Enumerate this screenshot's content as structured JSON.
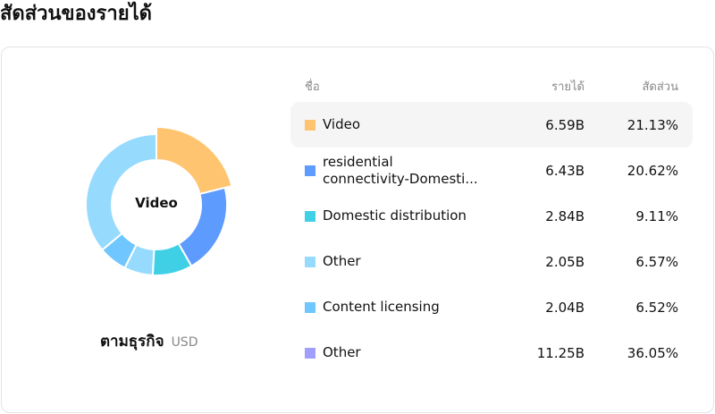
{
  "page": {
    "title": "สัดส่วนของรายได้"
  },
  "chart": {
    "center_label": "Video",
    "footer_label": "ตามธุรกิจ",
    "currency": "USD"
  },
  "table": {
    "headers": {
      "name": "ชื่อ",
      "revenue": "รายได้",
      "share": "สัดส่วน"
    },
    "rows": [
      {
        "name": "Video",
        "revenue": "6.59B",
        "share": "21.13%",
        "color": "#fec46f"
      },
      {
        "name": "residential\nconnectivity-Domesti...",
        "revenue": "6.43B",
        "share": "20.62%",
        "color": "#5e9bfe"
      },
      {
        "name": "Domestic distribution",
        "revenue": "2.84B",
        "share": "9.11%",
        "color": "#40d0e6"
      },
      {
        "name": "Other",
        "revenue": "2.05B",
        "share": "6.57%",
        "color": "#96dafe"
      },
      {
        "name": "Content licensing",
        "revenue": "2.04B",
        "share": "6.52%",
        "color": "#70c6fe"
      },
      {
        "name": "Other",
        "revenue": "11.25B",
        "share": "36.05%",
        "color": "#a09ffe"
      }
    ]
  },
  "chart_data": {
    "type": "pie",
    "title": "สัดส่วนของรายได้",
    "subtitle": "ตามธุรกิจ USD",
    "donut": true,
    "highlighted": "Video",
    "categories": [
      "Video",
      "residential connectivity-Domesti...",
      "Domestic distribution",
      "Other",
      "Content licensing",
      "Other"
    ],
    "values": [
      6.59,
      6.43,
      2.84,
      2.05,
      2.04,
      11.25
    ],
    "percentages": [
      21.13,
      20.62,
      9.11,
      6.57,
      6.52,
      36.05
    ],
    "unit": "B USD",
    "colors": [
      "#fec46f",
      "#5e9bfe",
      "#40d0e6",
      "#96dafe",
      "#70c6fe",
      "#96dafe"
    ]
  }
}
